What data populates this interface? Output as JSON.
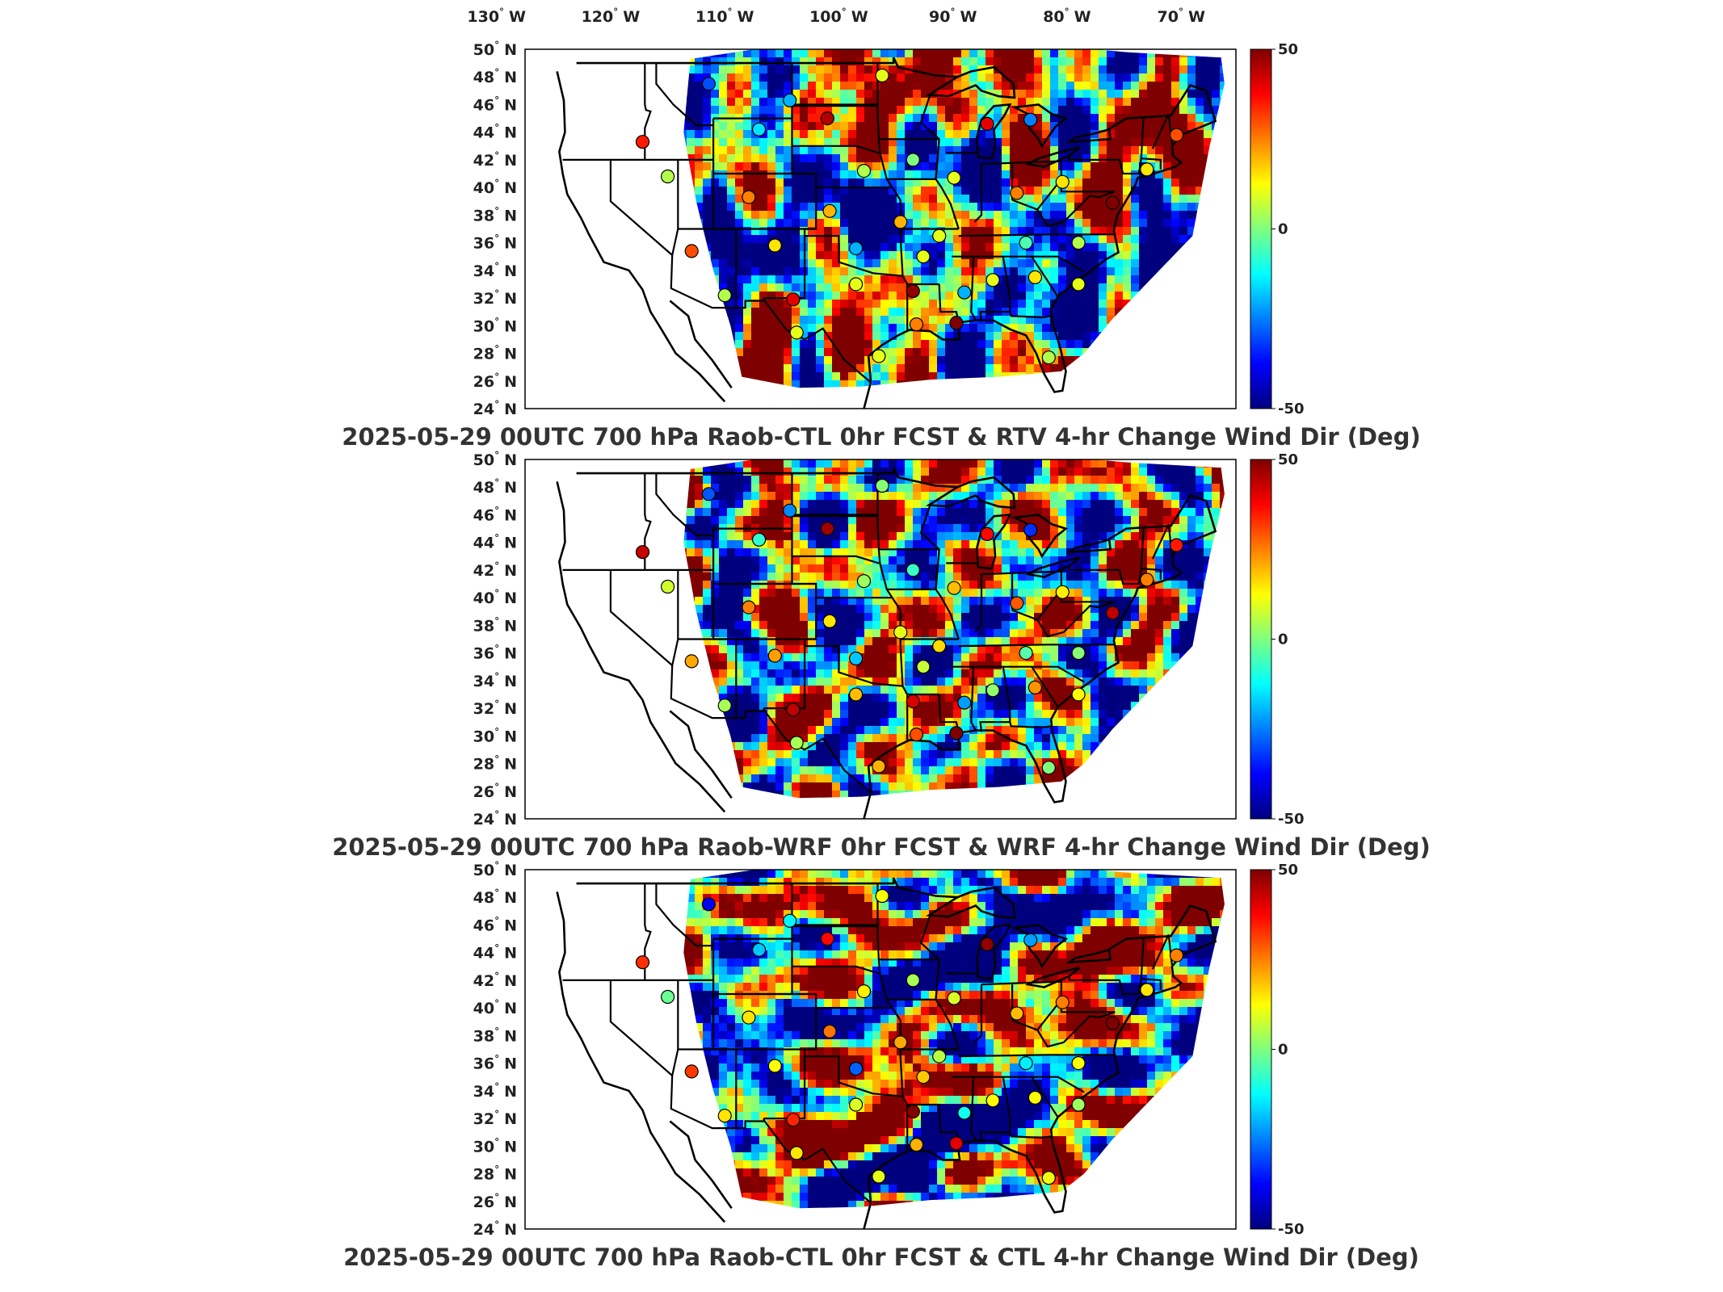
{
  "top_axis": {
    "lon_labels": [
      "130",
      "120",
      "110",
      "100",
      "90",
      "80",
      "70"
    ],
    "hemisphere": "W"
  },
  "lat_axis": {
    "lat_labels": [
      "50",
      "48",
      "46",
      "44",
      "42",
      "40",
      "38",
      "36",
      "34",
      "32",
      "30",
      "28",
      "26",
      "24"
    ],
    "hemisphere": "N"
  },
  "colorbar": {
    "ticks": [
      "50",
      "0",
      "-50"
    ],
    "min": -50,
    "max": 50,
    "colormap": [
      "#00007f",
      "#0000ff",
      "#007fff",
      "#00ffff",
      "#7fff7f",
      "#ffff00",
      "#ff7f00",
      "#ff0000",
      "#7f0000"
    ]
  },
  "panels": [
    {
      "title": "2025-05-29 00UTC 700 hPa Raob-CTL 0hr FCST & RTV 4-hr Change Wind Dir (Deg)",
      "seed": 11
    },
    {
      "title": "2025-05-29 00UTC 700 hPa Raob-WRF 0hr FCST & WRF 4-hr Change Wind Dir (Deg)",
      "seed": 23
    },
    {
      "title": "2025-05-29 00UTC 700 hPa Raob-CTL 0hr FCST & CTL 4-hr Change Wind Dir (Deg)",
      "seed": 37
    }
  ],
  "stations": [
    {
      "lon": -111.4,
      "lat": 47.5,
      "value": -30
    },
    {
      "lon": -104.3,
      "lat": 46.3,
      "value": -20
    },
    {
      "lon": -96.2,
      "lat": 48.1,
      "value": 10
    },
    {
      "lon": -107.0,
      "lat": 44.2,
      "value": -15
    },
    {
      "lon": -101.0,
      "lat": 45.0,
      "value": 45
    },
    {
      "lon": -87.0,
      "lat": 44.6,
      "value": 40
    },
    {
      "lon": -83.2,
      "lat": 44.9,
      "value": -25
    },
    {
      "lon": -117.2,
      "lat": 43.3,
      "value": 35
    },
    {
      "lon": -115.0,
      "lat": 40.8,
      "value": 5
    },
    {
      "lon": -97.8,
      "lat": 41.2,
      "value": 5
    },
    {
      "lon": -93.5,
      "lat": 42.0,
      "value": 0
    },
    {
      "lon": -89.9,
      "lat": 40.7,
      "value": 10
    },
    {
      "lon": -84.4,
      "lat": 39.6,
      "value": 25
    },
    {
      "lon": -80.4,
      "lat": 40.4,
      "value": 15
    },
    {
      "lon": -76.0,
      "lat": 38.9,
      "value": 50
    },
    {
      "lon": -73.0,
      "lat": 41.3,
      "value": 15
    },
    {
      "lon": -70.4,
      "lat": 43.8,
      "value": 30
    },
    {
      "lon": -107.9,
      "lat": 39.3,
      "value": 25
    },
    {
      "lon": -100.8,
      "lat": 38.3,
      "value": 20
    },
    {
      "lon": -94.6,
      "lat": 37.5,
      "value": 20
    },
    {
      "lon": -91.2,
      "lat": 36.5,
      "value": 10
    },
    {
      "lon": -83.6,
      "lat": 36.0,
      "value": -5
    },
    {
      "lon": -79.0,
      "lat": 36.0,
      "value": 5
    },
    {
      "lon": -112.9,
      "lat": 35.4,
      "value": 30
    },
    {
      "lon": -105.6,
      "lat": 35.8,
      "value": 15
    },
    {
      "lon": -98.5,
      "lat": 35.6,
      "value": -20
    },
    {
      "lon": -92.6,
      "lat": 35.0,
      "value": 10
    },
    {
      "lon": -86.5,
      "lat": 33.3,
      "value": 10
    },
    {
      "lon": -82.8,
      "lat": 33.5,
      "value": 15
    },
    {
      "lon": -79.0,
      "lat": 33.0,
      "value": 10
    },
    {
      "lon": -89.0,
      "lat": 32.4,
      "value": -20
    },
    {
      "lon": -93.5,
      "lat": 32.5,
      "value": 48
    },
    {
      "lon": -98.5,
      "lat": 33.0,
      "value": 10
    },
    {
      "lon": -104.0,
      "lat": 31.9,
      "value": 40
    },
    {
      "lon": -110.0,
      "lat": 32.2,
      "value": 5
    },
    {
      "lon": -103.7,
      "lat": 29.5,
      "value": 10
    },
    {
      "lon": -96.5,
      "lat": 27.8,
      "value": 10
    },
    {
      "lon": -93.2,
      "lat": 30.1,
      "value": 25
    },
    {
      "lon": -89.7,
      "lat": 30.2,
      "value": 50
    },
    {
      "lon": -81.6,
      "lat": 27.7,
      "value": 5
    }
  ]
}
